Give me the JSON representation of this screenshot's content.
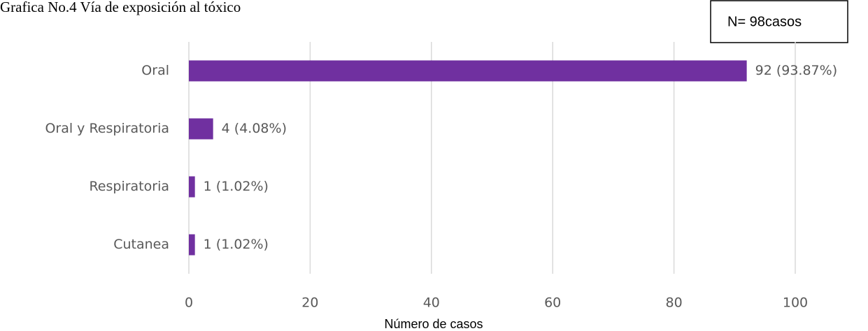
{
  "chart_data": {
    "type": "bar",
    "orientation": "horizontal",
    "title": "Grafica No.4 Vía de exposición al tóxico",
    "annotation": "N= 98casos",
    "x_label": "Número de casos",
    "categories": [
      "Oral",
      "Oral y Respiratoria",
      "Respiratoria",
      "Cutanea"
    ],
    "values": [
      92,
      4,
      1,
      1
    ],
    "value_labels": [
      "92 (93.87%)",
      "4 (4.08%)",
      "1 (1.02%)",
      "1 (1.02%)"
    ],
    "color": "#7030a0",
    "xlim": [
      0,
      100
    ],
    "xticks": [
      0,
      20,
      40,
      60,
      80,
      100
    ],
    "grid": true
  }
}
